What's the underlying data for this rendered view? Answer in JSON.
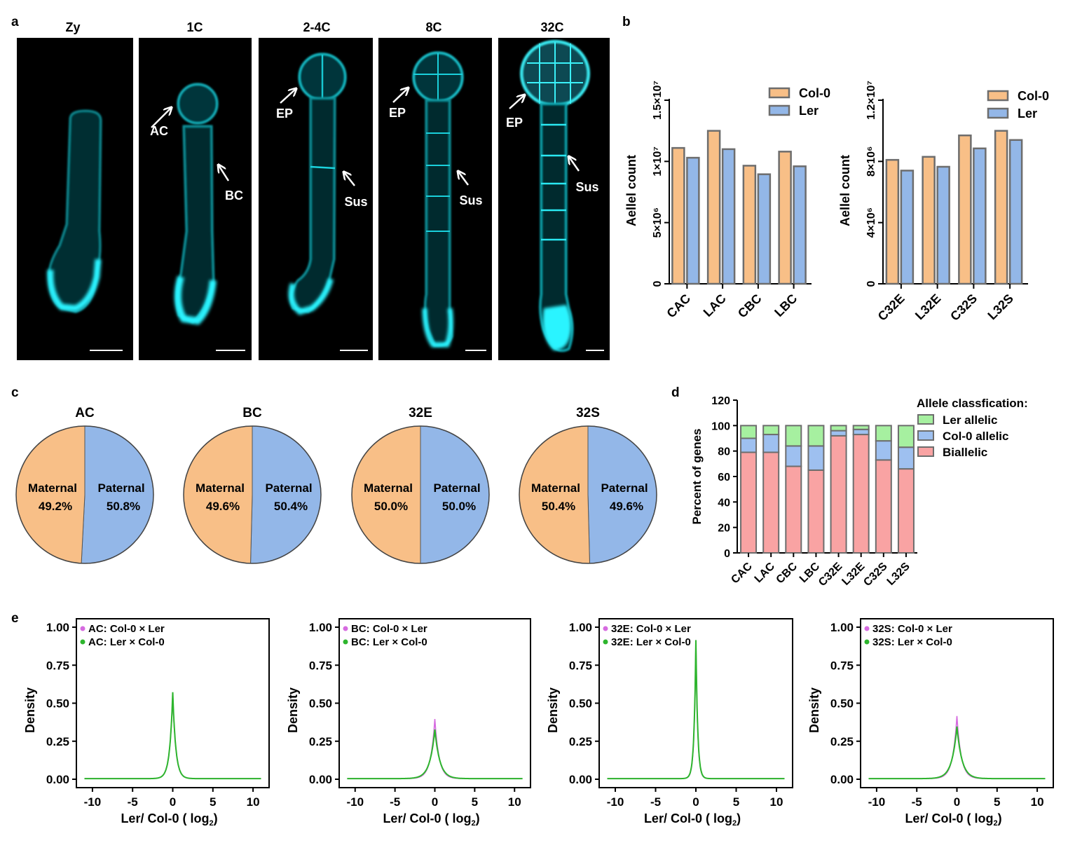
{
  "panel_labels": {
    "a": "a",
    "b": "b",
    "c": "c",
    "d": "d",
    "e": "e"
  },
  "colors": {
    "col0": "#F8BF87",
    "ler": "#93B7E8",
    "bar_stroke": "#6d6d6d",
    "cyan": "#00E5F0",
    "ler_allelic": "#A6F0A0",
    "col0_allelic": "#9EC0F0",
    "biallelic": "#F9A3A3",
    "density_cross1": "#D66BE0",
    "density_cross2": "#2DB52D"
  },
  "panel_a": {
    "images": [
      {
        "title": "Zy",
        "labels": [],
        "stage": "zygote"
      },
      {
        "title": "1C",
        "labels": [
          "AC",
          "BC"
        ],
        "stage": "1-cell"
      },
      {
        "title": "2-4C",
        "labels": [
          "EP",
          "Sus"
        ],
        "stage": "2-4-cell"
      },
      {
        "title": "8C",
        "labels": [
          "EP",
          "Sus"
        ],
        "stage": "8-cell"
      },
      {
        "title": "32C",
        "labels": [
          "EP",
          "Sus"
        ],
        "stage": "32-cell"
      }
    ]
  },
  "chart_data": [
    {
      "id": "b-left",
      "type": "bar",
      "categories": [
        "CAC",
        "LAC",
        "CBC",
        "LBC"
      ],
      "series": [
        {
          "name": "Col-0",
          "values": [
            11100000,
            12500000,
            9650000,
            10800000
          ]
        },
        {
          "name": "Ler",
          "values": [
            10300000,
            11000000,
            8950000,
            9600000
          ]
        }
      ],
      "ylabel": "Aellel count",
      "yticks": [
        "0",
        "5×10⁶",
        "1×10⁷",
        "1.5×10⁷"
      ],
      "ylim": [
        0,
        15000000
      ],
      "legend": "top-right"
    },
    {
      "id": "b-right",
      "type": "bar",
      "categories": [
        "C32E",
        "L32E",
        "C32S",
        "L32S"
      ],
      "series": [
        {
          "name": "Col-0",
          "values": [
            8100000,
            8300000,
            9700000,
            10000000
          ]
        },
        {
          "name": "Ler",
          "values": [
            7400000,
            7650000,
            8850000,
            9400000
          ]
        }
      ],
      "ylabel": "Aellel count",
      "yticks": [
        "0",
        "4×10⁶",
        "8×10⁶",
        "1.2×10⁷"
      ],
      "ylim": [
        0,
        12000000
      ],
      "legend": "top-right"
    },
    {
      "id": "c-pies",
      "type": "pie",
      "pies": [
        {
          "title": "AC",
          "slices": [
            {
              "label": "Maternal",
              "value": 49.2,
              "text": "49.2%"
            },
            {
              "label": "Paternal",
              "value": 50.8,
              "text": "50.8%"
            }
          ]
        },
        {
          "title": "BC",
          "slices": [
            {
              "label": "Maternal",
              "value": 49.6,
              "text": "49.6%"
            },
            {
              "label": "Paternal",
              "value": 50.4,
              "text": "50.4%"
            }
          ]
        },
        {
          "title": "32E",
          "slices": [
            {
              "label": "Maternal",
              "value": 50.0,
              "text": "50.0%"
            },
            {
              "label": "Paternal",
              "value": 50.0,
              "text": "50.0%"
            }
          ]
        },
        {
          "title": "32S",
          "slices": [
            {
              "label": "Maternal",
              "value": 50.4,
              "text": "50.4%"
            },
            {
              "label": "Paternal",
              "value": 49.6,
              "text": "49.6%"
            }
          ]
        }
      ]
    },
    {
      "id": "d-stacked",
      "type": "bar",
      "stacked": true,
      "categories": [
        "CAC",
        "LAC",
        "CBC",
        "LBC",
        "C32E",
        "L32E",
        "C32S",
        "L32S"
      ],
      "series": [
        {
          "name": "Biallelic",
          "values": [
            79,
            79,
            68,
            65,
            92,
            93,
            73,
            66
          ]
        },
        {
          "name": "Col-0 allelic",
          "values": [
            11,
            14,
            16,
            19,
            4,
            4,
            15,
            17
          ]
        },
        {
          "name": "Ler allelic",
          "values": [
            10,
            7,
            16,
            16,
            4,
            3,
            12,
            17
          ]
        }
      ],
      "ylabel": "Percent of genes",
      "ylim": [
        0,
        120
      ],
      "yticks": [
        "0",
        "20",
        "40",
        "60",
        "80",
        "100",
        "120"
      ],
      "legend_title": "Allele classfication:",
      "legend": "right"
    },
    {
      "id": "e-density",
      "type": "line",
      "xlabel": "Ler/ Col-0 ( log",
      "xlabel_sub": "2",
      "xlabel_end": ")",
      "ylabel": "Density",
      "xlim": [
        -12,
        12
      ],
      "ylim": [
        0,
        1
      ],
      "xticks": [
        "-10",
        "-5",
        "0",
        "5",
        "10"
      ],
      "yticks": [
        "0.00",
        "0.25",
        "0.50",
        "0.75",
        "1.00"
      ],
      "panels": [
        {
          "series": [
            {
              "name": "AC: Col-0 × Ler",
              "peak": 0.57,
              "width": 0.6
            },
            {
              "name": "AC: Ler × Col-0",
              "peak": 0.58,
              "width": 0.6
            }
          ]
        },
        {
          "series": [
            {
              "name": "BC: Col-0 × Ler",
              "peak": 0.4,
              "width": 0.85
            },
            {
              "name": "BC: Ler × Col-0",
              "peak": 0.33,
              "width": 1.0
            }
          ]
        },
        {
          "series": [
            {
              "name": "32E: Col-0 × Ler",
              "peak": 0.92,
              "width": 0.35
            },
            {
              "name": "32E: Ler × Col-0",
              "peak": 0.93,
              "width": 0.36
            }
          ]
        },
        {
          "series": [
            {
              "name": "32S: Col-0 × Ler",
              "peak": 0.42,
              "width": 0.85
            },
            {
              "name": "32S: Ler × Col-0",
              "peak": 0.35,
              "width": 1.0
            }
          ]
        }
      ]
    }
  ]
}
